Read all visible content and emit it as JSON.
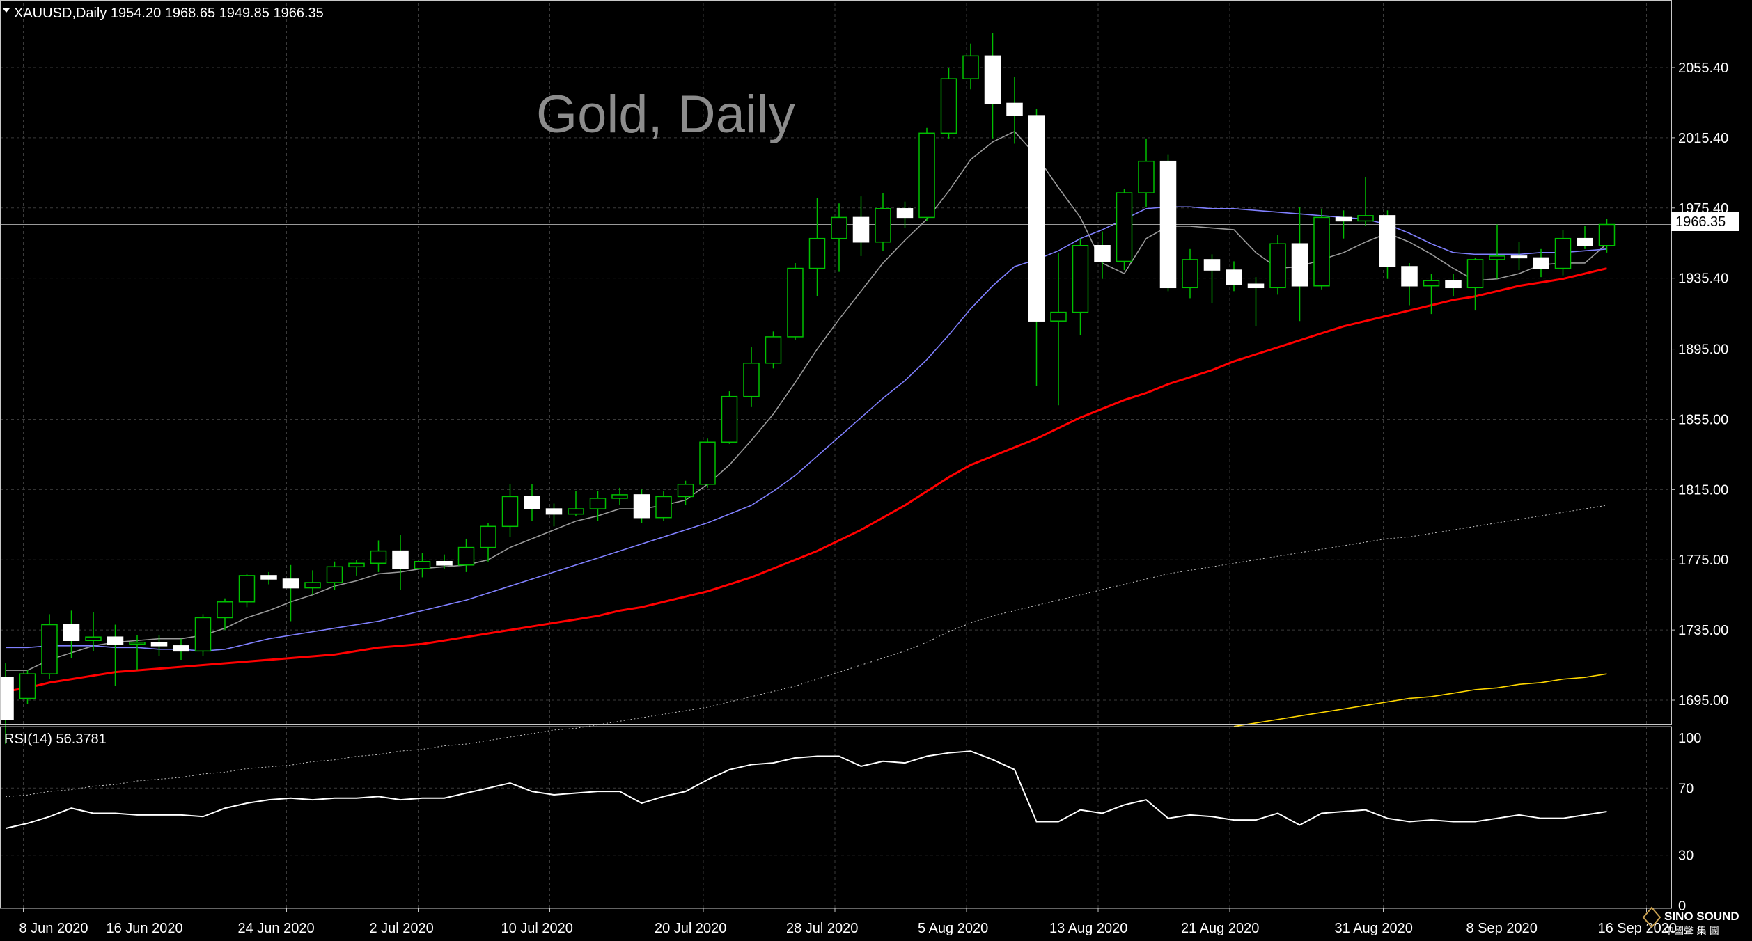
{
  "header": {
    "symbol_line": "XAUUSD,Daily  1954.20 1968.65 1949.85 1966.35",
    "watermark": "Gold, Daily"
  },
  "rsi_panel": {
    "label": "RSI(14) 56.3781"
  },
  "price_axis": {
    "labels": [
      "2055.40",
      "2015.40",
      "1975.40",
      "1935.40",
      "1895.00",
      "1855.00",
      "1815.00",
      "1775.00",
      "1735.00",
      "1695.00"
    ],
    "current_price": "1966.35"
  },
  "rsi_axis": {
    "labels": [
      "100",
      "70",
      "30",
      "0"
    ]
  },
  "time_axis": {
    "labels": [
      "8 Jun 2020",
      "16 Jun 2020",
      "24 Jun 2020",
      "2 Jul 2020",
      "10 Jul 2020",
      "20 Jul 2020",
      "28 Jul 2020",
      "5 Aug 2020",
      "13 Aug 2020",
      "21 Aug 2020",
      "31 Aug 2020",
      "8 Sep 2020",
      "16 Sep 2020"
    ]
  },
  "logo": {
    "text": "SINO SOUND",
    "subtext": "中國聲 集 團"
  },
  "colors": {
    "background": "#000000",
    "bull": "#00c000",
    "bear_body": "#ffffff",
    "sma_fast": "#9a9a9a",
    "sma_20": "#8080ff",
    "sma_50": "#ff0000",
    "sma_100": "#c8c8c8",
    "sma_200": "#ffd700",
    "rsi": "#ffffff"
  },
  "chart_data": [
    {
      "type": "candlestick",
      "title": "XAUUSD,Daily",
      "ylim": [
        1680,
        2080
      ],
      "dates": [
        "2020-06-05",
        "2020-06-08",
        "2020-06-09",
        "2020-06-10",
        "2020-06-11",
        "2020-06-12",
        "2020-06-15",
        "2020-06-16",
        "2020-06-17",
        "2020-06-18",
        "2020-06-19",
        "2020-06-22",
        "2020-06-23",
        "2020-06-24",
        "2020-06-25",
        "2020-06-26",
        "2020-06-29",
        "2020-06-30",
        "2020-07-01",
        "2020-07-02",
        "2020-07-03",
        "2020-07-06",
        "2020-07-07",
        "2020-07-08",
        "2020-07-09",
        "2020-07-10",
        "2020-07-13",
        "2020-07-14",
        "2020-07-15",
        "2020-07-16",
        "2020-07-17",
        "2020-07-20",
        "2020-07-21",
        "2020-07-22",
        "2020-07-23",
        "2020-07-24",
        "2020-07-27",
        "2020-07-28",
        "2020-07-29",
        "2020-07-30",
        "2020-07-31",
        "2020-08-03",
        "2020-08-04",
        "2020-08-05",
        "2020-08-06",
        "2020-08-07",
        "2020-08-10",
        "2020-08-11",
        "2020-08-12",
        "2020-08-13",
        "2020-08-14",
        "2020-08-17",
        "2020-08-18",
        "2020-08-19",
        "2020-08-20",
        "2020-08-21",
        "2020-08-24",
        "2020-08-25",
        "2020-08-26",
        "2020-08-27",
        "2020-08-28",
        "2020-08-31",
        "2020-09-01",
        "2020-09-02",
        "2020-09-03",
        "2020-09-04",
        "2020-09-07",
        "2020-09-08",
        "2020-09-09",
        "2020-09-10",
        "2020-09-11",
        "2020-09-14",
        "2020-09-15",
        "2020-09-16"
      ],
      "ohlc": [
        [
          1708,
          1716,
          1670,
          1684
        ],
        [
          1696,
          1712,
          1693,
          1710
        ],
        [
          1710,
          1744,
          1707,
          1738
        ],
        [
          1738,
          1746,
          1719,
          1729
        ],
        [
          1729,
          1745,
          1723,
          1731
        ],
        [
          1731,
          1738,
          1703,
          1727
        ],
        [
          1727,
          1732,
          1712,
          1728
        ],
        [
          1728,
          1732,
          1720,
          1726
        ],
        [
          1726,
          1730,
          1718,
          1723
        ],
        [
          1723,
          1744,
          1720,
          1742
        ],
        [
          1742,
          1753,
          1735,
          1751
        ],
        [
          1751,
          1767,
          1748,
          1766
        ],
        [
          1766,
          1768,
          1761,
          1764
        ],
        [
          1764,
          1772,
          1740,
          1759
        ],
        [
          1759,
          1769,
          1755,
          1762
        ],
        [
          1762,
          1774,
          1758,
          1771
        ],
        [
          1771,
          1775,
          1766,
          1773
        ],
        [
          1773,
          1786,
          1768,
          1780
        ],
        [
          1780,
          1789,
          1758,
          1770
        ],
        [
          1770,
          1779,
          1765,
          1774
        ],
        [
          1774,
          1778,
          1770,
          1772
        ],
        [
          1772,
          1787,
          1768,
          1782
        ],
        [
          1782,
          1796,
          1774,
          1794
        ],
        [
          1794,
          1818,
          1788,
          1811
        ],
        [
          1811,
          1818,
          1797,
          1804
        ],
        [
          1804,
          1807,
          1794,
          1801
        ],
        [
          1801,
          1814,
          1800,
          1804
        ],
        [
          1804,
          1814,
          1797,
          1810
        ],
        [
          1810,
          1816,
          1806,
          1812
        ],
        [
          1812,
          1815,
          1796,
          1799
        ],
        [
          1799,
          1814,
          1797,
          1811
        ],
        [
          1811,
          1820,
          1806,
          1818
        ],
        [
          1818,
          1844,
          1816,
          1842
        ],
        [
          1842,
          1871,
          1841,
          1868
        ],
        [
          1868,
          1896,
          1862,
          1887
        ],
        [
          1887,
          1905,
          1884,
          1902
        ],
        [
          1902,
          1944,
          1900,
          1941
        ],
        [
          1941,
          1981,
          1925,
          1958
        ],
        [
          1958,
          1978,
          1939,
          1970
        ],
        [
          1970,
          1982,
          1948,
          1956
        ],
        [
          1956,
          1984,
          1951,
          1975
        ],
        [
          1975,
          1979,
          1964,
          1970
        ],
        [
          1970,
          2021,
          1968,
          2018
        ],
        [
          2018,
          2055,
          2015,
          2049
        ],
        [
          2049,
          2069,
          2043,
          2062
        ],
        [
          2062,
          2075,
          2015,
          2035
        ],
        [
          2035,
          2050,
          2012,
          2028
        ],
        [
          2028,
          2032,
          1874,
          1911
        ],
        [
          1911,
          1950,
          1863,
          1916
        ],
        [
          1916,
          1958,
          1903,
          1954
        ],
        [
          1954,
          1962,
          1935,
          1945
        ],
        [
          1945,
          1986,
          1940,
          1984
        ],
        [
          1984,
          2015,
          1976,
          2002
        ],
        [
          2002,
          2006,
          1928,
          1930
        ],
        [
          1930,
          1952,
          1924,
          1946
        ],
        [
          1946,
          1949,
          1921,
          1940
        ],
        [
          1940,
          1945,
          1928,
          1932
        ],
        [
          1932,
          1936,
          1908,
          1930
        ],
        [
          1930,
          1960,
          1926,
          1955
        ],
        [
          1955,
          1976,
          1911,
          1931
        ],
        [
          1931,
          1975,
          1929,
          1970
        ],
        [
          1970,
          1974,
          1958,
          1968
        ],
        [
          1968,
          1993,
          1965,
          1971
        ],
        [
          1971,
          1974,
          1935,
          1942
        ],
        [
          1942,
          1944,
          1920,
          1931
        ],
        [
          1931,
          1938,
          1915,
          1934
        ],
        [
          1934,
          1938,
          1925,
          1930
        ],
        [
          1930,
          1947,
          1917,
          1946
        ],
        [
          1946,
          1966,
          1935,
          1948
        ],
        [
          1948,
          1956,
          1940,
          1947
        ],
        [
          1947,
          1952,
          1936,
          1941
        ],
        [
          1941,
          1963,
          1937,
          1958
        ],
        [
          1958,
          1965,
          1952,
          1954
        ],
        [
          1954,
          1969,
          1950,
          1966
        ]
      ],
      "overlays": [
        {
          "type": "sma",
          "color": "#9a9a9a",
          "values": [
            1712,
            1712,
            1718,
            1722,
            1726,
            1728,
            1729,
            1730,
            1730,
            1732,
            1736,
            1742,
            1746,
            1751,
            1755,
            1760,
            1763,
            1767,
            1768,
            1770,
            1771,
            1772,
            1775,
            1782,
            1787,
            1792,
            1797,
            1800,
            1804,
            1804,
            1806,
            1809,
            1818,
            1829,
            1843,
            1858,
            1876,
            1895,
            1912,
            1928,
            1944,
            1957,
            1969,
            1985,
            2003,
            2013,
            2019,
            2005,
            1987,
            1970,
            1944,
            1938,
            1958,
            1965,
            1965,
            1964,
            1963,
            1950,
            1941,
            1942,
            1946,
            1950,
            1956,
            1961,
            1956,
            1949,
            1941,
            1934,
            1935,
            1938,
            1943,
            1944,
            1944,
            1955
          ]
        },
        {
          "type": "sma",
          "color": "#8080ff",
          "values": [
            1725,
            1725,
            1726,
            1726,
            1726,
            1725,
            1725,
            1724,
            1724,
            1723,
            1724,
            1727,
            1730,
            1732,
            1734,
            1736,
            1738,
            1740,
            1743,
            1746,
            1749,
            1752,
            1756,
            1760,
            1764,
            1768,
            1772,
            1776,
            1780,
            1784,
            1788,
            1792,
            1796,
            1801,
            1806,
            1814,
            1823,
            1834,
            1845,
            1856,
            1867,
            1877,
            1889,
            1903,
            1918,
            1931,
            1942,
            1946,
            1951,
            1958,
            1963,
            1969,
            1975,
            1976,
            1976,
            1975,
            1975,
            1974,
            1973,
            1972,
            1971,
            1970,
            1969,
            1966,
            1961,
            1955,
            1950,
            1949,
            1949,
            1949,
            1950,
            1950,
            1951,
            1952
          ]
        },
        {
          "type": "sma",
          "color": "#ff0000",
          "values": [
            1700,
            1702,
            1705,
            1707,
            1709,
            1711,
            1712,
            1713,
            1714,
            1715,
            1716,
            1717,
            1718,
            1719,
            1720,
            1721,
            1723,
            1725,
            1726,
            1727,
            1729,
            1731,
            1733,
            1735,
            1737,
            1739,
            1741,
            1743,
            1746,
            1748,
            1751,
            1754,
            1757,
            1761,
            1765,
            1770,
            1775,
            1780,
            1786,
            1792,
            1799,
            1806,
            1814,
            1822,
            1829,
            1834,
            1839,
            1844,
            1850,
            1856,
            1861,
            1866,
            1870,
            1875,
            1879,
            1883,
            1888,
            1892,
            1896,
            1900,
            1904,
            1908,
            1911,
            1914,
            1917,
            1920,
            1923,
            1925,
            1928,
            1931,
            1933,
            1935,
            1938,
            1941
          ]
        },
        {
          "type": "sma",
          "color": "#c8c8c8",
          "values": [
            1640,
            1641,
            1643,
            1644,
            1646,
            1647,
            1649,
            1650,
            1651,
            1653,
            1654,
            1656,
            1657,
            1658,
            1660,
            1661,
            1663,
            1664,
            1666,
            1667,
            1669,
            1670,
            1672,
            1674,
            1676,
            1678,
            1679,
            1681,
            1683,
            1685,
            1687,
            1689,
            1691,
            1694,
            1697,
            1700,
            1703,
            1707,
            1711,
            1715,
            1719,
            1723,
            1728,
            1734,
            1739,
            1743,
            1746,
            1749,
            1752,
            1755,
            1758,
            1761,
            1764,
            1767,
            1769,
            1771,
            1773,
            1775,
            1777,
            1779,
            1781,
            1783,
            1785,
            1787,
            1788,
            1790,
            1792,
            1794,
            1796,
            1798,
            1800,
            1802,
            1804,
            1806
          ]
        },
        {
          "type": "sma",
          "color": "#ffd700",
          "values": [
            null,
            null,
            null,
            null,
            null,
            null,
            null,
            null,
            null,
            null,
            null,
            null,
            null,
            null,
            null,
            null,
            null,
            null,
            null,
            null,
            null,
            null,
            null,
            null,
            null,
            null,
            null,
            null,
            null,
            null,
            null,
            null,
            null,
            null,
            null,
            null,
            null,
            null,
            null,
            null,
            null,
            null,
            null,
            null,
            null,
            null,
            null,
            null,
            null,
            null,
            null,
            null,
            null,
            null,
            null,
            null,
            1680,
            1682,
            1684,
            1686,
            1688,
            1690,
            1692,
            1694,
            1696,
            1697,
            1699,
            1701,
            1702,
            1704,
            1705,
            1707,
            1708,
            1710
          ]
        }
      ]
    },
    {
      "type": "line",
      "title": "RSI(14) 56.3781",
      "ylim": [
        0,
        100
      ],
      "values": [
        46,
        49,
        53,
        58,
        55,
        55,
        54,
        54,
        54,
        53,
        58,
        61,
        63,
        64,
        63,
        64,
        64,
        65,
        63,
        64,
        64,
        67,
        70,
        73,
        68,
        66,
        67,
        68,
        68,
        61,
        65,
        68,
        75,
        81,
        84,
        85,
        88,
        89,
        89,
        83,
        86,
        85,
        89,
        91,
        92,
        87,
        81,
        50,
        50,
        57,
        55,
        60,
        63,
        52,
        54,
        53,
        51,
        51,
        55,
        48,
        55,
        56,
        57,
        52,
        50,
        51,
        50,
        50,
        52,
        54,
        52,
        52,
        54,
        56
      ]
    }
  ]
}
